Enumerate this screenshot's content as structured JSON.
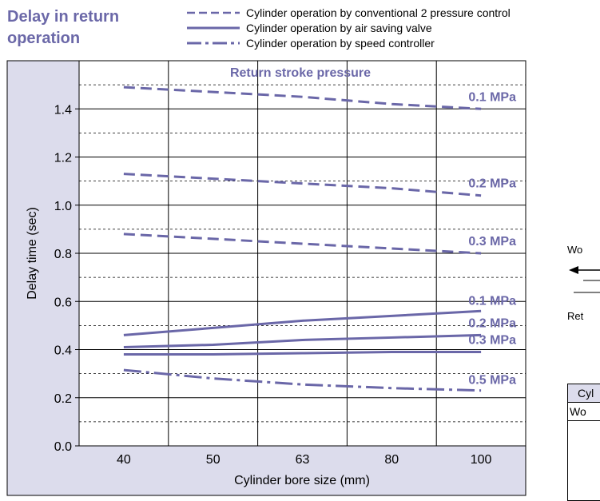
{
  "title_lines": [
    "Delay in return",
    "operation"
  ],
  "legend": [
    {
      "label": "Cylinder operation by conventional 2 pressure control",
      "style": "dashed"
    },
    {
      "label": "Cylinder operation by air saving valve",
      "style": "solid"
    },
    {
      "label": "Cylinder operation by speed controller",
      "style": "dashdot"
    }
  ],
  "colors": {
    "line": "#6a67a8",
    "panel": "#dcdcec",
    "label": "#6b68a8",
    "title": "#6b68a8"
  },
  "chart_data": {
    "type": "line",
    "title": "Return stroke pressure",
    "xlabel": "Cylinder bore size (mm)",
    "ylabel": "Delay time (sec)",
    "categories": [
      "40",
      "50",
      "63",
      "80",
      "100"
    ],
    "ylim": [
      0.0,
      1.6
    ],
    "yticks": [
      "0.0",
      "0.2",
      "0.4",
      "0.6",
      "0.8",
      "1.0",
      "1.2",
      "1.4"
    ],
    "grid": true,
    "series": [
      {
        "name": "0.1 MPa",
        "style": "dashed",
        "values": [
          1.49,
          1.47,
          1.45,
          1.42,
          1.4
        ]
      },
      {
        "name": "0.2 MPa",
        "style": "dashed",
        "values": [
          1.13,
          1.11,
          1.09,
          1.07,
          1.04
        ]
      },
      {
        "name": "0.3 MPa",
        "style": "dashed",
        "values": [
          0.88,
          0.86,
          0.84,
          0.82,
          0.8
        ]
      },
      {
        "name": "0.1 MPa",
        "style": "solid",
        "values": [
          0.46,
          0.49,
          0.52,
          0.54,
          0.56
        ]
      },
      {
        "name": "0.2 MPa",
        "style": "solid",
        "values": [
          0.41,
          0.42,
          0.44,
          0.45,
          0.46
        ]
      },
      {
        "name": "0.3 MPa",
        "style": "solid",
        "values": [
          0.38,
          0.38,
          0.385,
          0.39,
          0.39
        ]
      },
      {
        "name": "0.5 MPa",
        "style": "dashdot",
        "values": [
          0.315,
          0.28,
          0.255,
          0.24,
          0.23
        ]
      }
    ]
  },
  "side_text": {
    "work": "Wo",
    "ret": "Ret",
    "cyl_header": "Cyl",
    "cyl_row": "Wo"
  }
}
